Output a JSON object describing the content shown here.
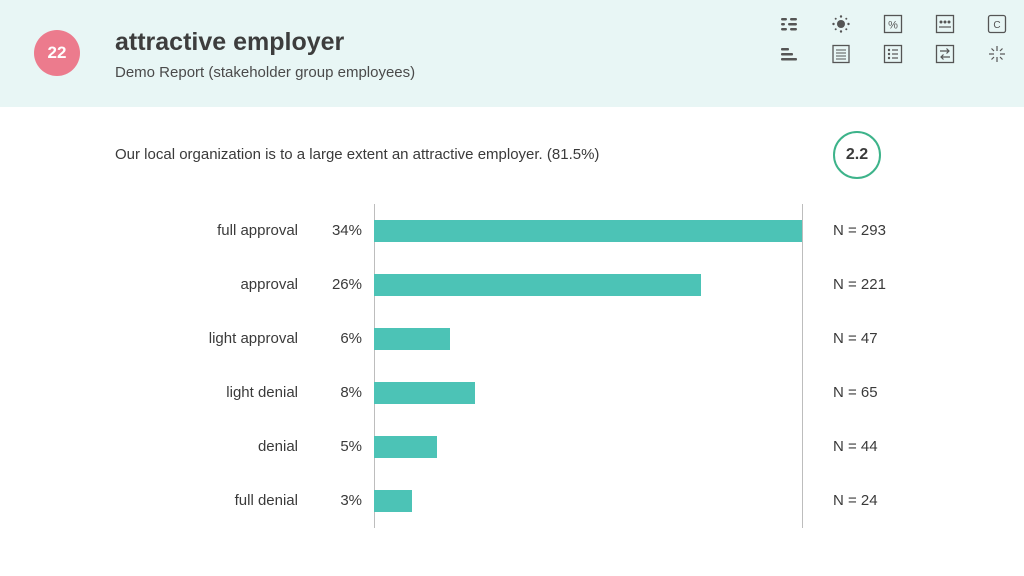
{
  "header": {
    "page_number": "22",
    "title": "attractive employer",
    "subtitle": "Demo Report (stakeholder group employees)",
    "icons": [
      "filter-list-icon",
      "sun-icon",
      "percent-icon",
      "dots-grid-icon",
      "c-box-icon",
      "bar-align-icon",
      "document-lines-icon",
      "grid-list-icon",
      "swap-arrows-icon",
      "sparkle-icon"
    ],
    "percent_glyph": "%",
    "c_glyph": "C"
  },
  "question": "Our local organization is to a large extent an attractive employer. (81.5%)",
  "score": "2.2",
  "colors": {
    "bar": "#4cc3b6",
    "badge": "#ec7b8d",
    "score_ring": "#3db38a",
    "header_bg": "#e8f6f5"
  },
  "chart_data": {
    "type": "bar",
    "orientation": "horizontal",
    "categories": [
      "full approval",
      "approval",
      "light approval",
      "light denial",
      "denial",
      "full denial"
    ],
    "values": [
      34,
      26,
      6,
      8,
      5,
      3
    ],
    "value_labels": [
      "34%",
      "26%",
      "6%",
      "8%",
      "5%",
      "3%"
    ],
    "n_labels": [
      "N = 293",
      "N = 221",
      "N = 47",
      "N = 65",
      "N = 44",
      "N = 24"
    ],
    "xlim": [
      0,
      34
    ],
    "grid": false
  }
}
